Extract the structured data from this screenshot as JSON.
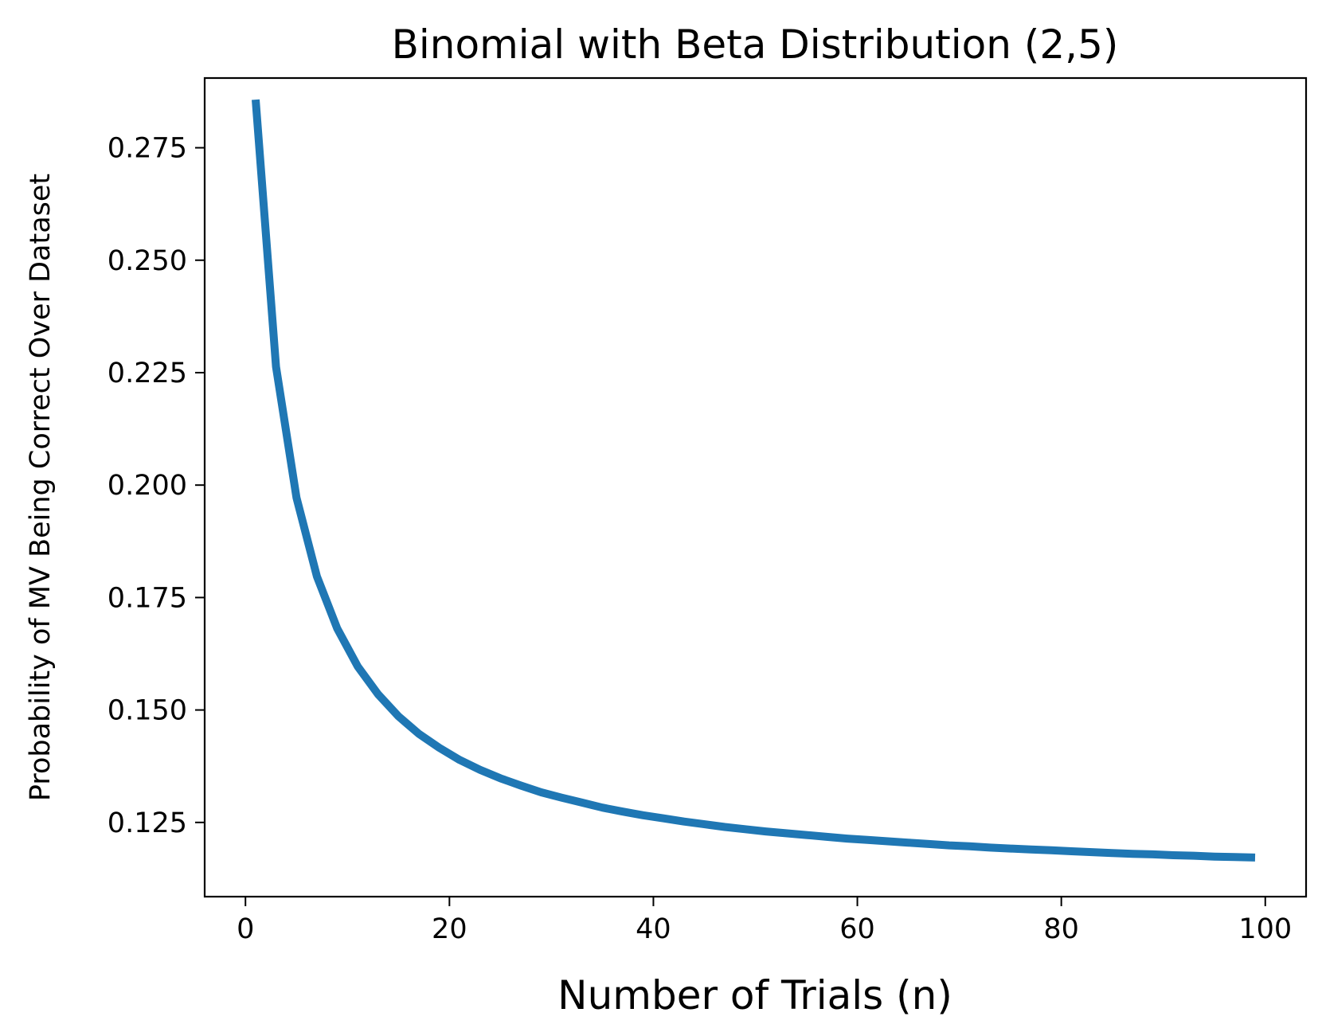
{
  "chart_data": {
    "type": "line",
    "title": "Binomial with Beta Distribution (2,5)",
    "xlabel": "Number of Trials (n)",
    "ylabel": "Probability of MV Being Correct Over Dataset",
    "xlim": [
      -4,
      104
    ],
    "ylim": [
      0.1085,
      0.2905
    ],
    "xticks": [
      0,
      20,
      40,
      60,
      80,
      100
    ],
    "xtick_labels": [
      "0",
      "20",
      "40",
      "60",
      "80",
      "100"
    ],
    "yticks": [
      0.125,
      0.15,
      0.175,
      0.2,
      0.225,
      0.25,
      0.275
    ],
    "ytick_labels": [
      "0.125",
      "0.150",
      "0.175",
      "0.200",
      "0.225",
      "0.250",
      "0.275"
    ],
    "grid": false,
    "series": [
      {
        "color": "#1f77b4",
        "x": [
          1,
          3,
          5,
          7,
          9,
          11,
          13,
          15,
          17,
          19,
          21,
          23,
          25,
          27,
          29,
          31,
          33,
          35,
          37,
          39,
          41,
          43,
          45,
          47,
          49,
          51,
          53,
          55,
          57,
          59,
          61,
          63,
          65,
          67,
          69,
          71,
          73,
          75,
          77,
          79,
          81,
          83,
          85,
          87,
          89,
          91,
          93,
          95,
          97,
          99
        ],
        "y": [
          0.2857,
          0.2263,
          0.1972,
          0.1797,
          0.1681,
          0.1597,
          0.1535,
          0.1486,
          0.1447,
          0.1416,
          0.1389,
          0.1367,
          0.1348,
          0.1332,
          0.1317,
          0.1305,
          0.1294,
          0.1283,
          0.1274,
          0.1266,
          0.1259,
          0.1252,
          0.1246,
          0.124,
          0.1235,
          0.123,
          0.1226,
          0.1222,
          0.1218,
          0.1214,
          0.1211,
          0.1208,
          0.1205,
          0.1202,
          0.1199,
          0.1197,
          0.1194,
          0.1192,
          0.119,
          0.1188,
          0.1186,
          0.1184,
          0.1182,
          0.118,
          0.1179,
          0.1177,
          0.1176,
          0.1174,
          0.1173,
          0.1172
        ]
      }
    ]
  }
}
